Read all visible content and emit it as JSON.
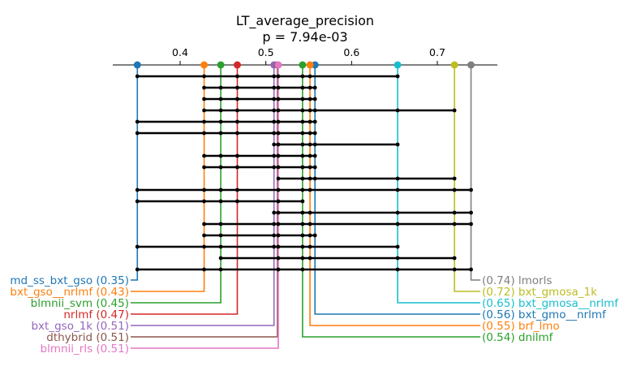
{
  "chart_data": {
    "type": "critical-difference",
    "title": "LT_average_precision",
    "subtitle": "p = 7.94e-03",
    "axis": {
      "range": [
        0.34,
        0.78
      ],
      "ticks": [
        0.4,
        0.5,
        0.6,
        0.7
      ],
      "tick_labels": [
        "0.4",
        "0.5",
        "0.6",
        "0.7"
      ],
      "position": "top"
    },
    "methods": [
      {
        "name": "md_ss_bxt_gso",
        "value": 0.35,
        "label": "md_ss_bxt_gso (0.35)",
        "side": "left",
        "color": "#1f77b4",
        "x_exact": 0.3501
      },
      {
        "name": "bxt_gso__nrlmf",
        "value": 0.43,
        "label": "bxt_gso__nrlmf (0.43)",
        "side": "left",
        "color": "#ff7f0e",
        "x_exact": 0.428
      },
      {
        "name": "blmnii_svm",
        "value": 0.45,
        "label": "blmnii_svm (0.45)",
        "side": "left",
        "color": "#2ca02c",
        "x_exact": 0.4474
      },
      {
        "name": "nrlmf",
        "value": 0.47,
        "label": "nrlmf (0.47)",
        "side": "left",
        "color": "#d62728",
        "x_exact": 0.4667
      },
      {
        "name": "bxt_gso_1k",
        "value": 0.51,
        "label": "bxt_gso_1k (0.51)",
        "side": "left",
        "color": "#9467bd",
        "x_exact": 0.5095
      },
      {
        "name": "dthybrid",
        "value": 0.51,
        "label": "dthybrid (0.51)",
        "side": "left",
        "color": "#8c564b",
        "x_exact": 0.5135
      },
      {
        "name": "blmnii_rls",
        "value": 0.51,
        "label": "blmnii_rls (0.51)",
        "side": "left",
        "color": "#e377c2",
        "x_exact": 0.5145
      },
      {
        "name": "lmorls",
        "value": 0.74,
        "label": "(0.74) lmorls",
        "side": "right",
        "color": "#7f7f7f",
        "x_exact": 0.7393
      },
      {
        "name": "bxt_gmosa_1k",
        "value": 0.72,
        "label": "(0.72) bxt_gmosa_1k",
        "side": "right",
        "color": "#bcbd22",
        "x_exact": 0.72
      },
      {
        "name": "bxt_gmosa__nrlmf",
        "value": 0.65,
        "label": "(0.65) bxt_gmosa__nrlmf",
        "side": "right",
        "color": "#17becf",
        "x_exact": 0.6537
      },
      {
        "name": "bxt_gmo__nrlmf",
        "value": 0.56,
        "label": "(0.56) bxt_gmo__nrlmf",
        "side": "right",
        "color": "#1f77b4",
        "x_exact": 0.5573
      },
      {
        "name": "brf_lmo",
        "value": 0.55,
        "label": "(0.55) brf_lmo",
        "side": "right",
        "color": "#ff7f0e",
        "x_exact": 0.5515
      },
      {
        "name": "dnilmf",
        "value": 0.54,
        "label": "(0.54) dnilmf",
        "side": "right",
        "color": "#2ca02c",
        "x_exact": 0.5428
      }
    ],
    "cliques": [
      [
        0.3501,
        0.6537
      ],
      [
        0.428,
        0.5573
      ],
      [
        0.428,
        0.5573
      ],
      [
        0.428,
        0.72
      ],
      [
        0.3501,
        0.5573
      ],
      [
        0.3501,
        0.5573
      ],
      [
        0.5095,
        0.6537
      ],
      [
        0.428,
        0.5573
      ],
      [
        0.428,
        0.5573
      ],
      [
        0.5145,
        0.72
      ],
      [
        0.3501,
        0.7393
      ],
      [
        0.3501,
        0.5428
      ],
      [
        0.5095,
        0.7393
      ],
      [
        0.428,
        0.7393
      ],
      [
        0.428,
        0.5573
      ],
      [
        0.3501,
        0.6537
      ],
      [
        0.4474,
        0.72
      ],
      [
        0.3501,
        0.7393
      ]
    ],
    "clique_points": [
      [
        0.3501,
        0.428,
        0.4667,
        0.5095,
        0.5145,
        0.5428,
        0.5515,
        0.6537
      ],
      [
        0.428,
        0.4474,
        0.4667,
        0.5095,
        0.5145,
        0.5428,
        0.5515,
        0.5573
      ],
      [
        0.428,
        0.4474,
        0.4667,
        0.5095,
        0.5145,
        0.5428,
        0.5515,
        0.5573
      ],
      [
        0.428,
        0.4474,
        0.4667,
        0.5095,
        0.5145,
        0.5428,
        0.5515,
        0.5573,
        0.6537,
        0.72
      ],
      [
        0.3501,
        0.428,
        0.4474,
        0.4667,
        0.5095,
        0.5145,
        0.5428,
        0.5515,
        0.5573
      ],
      [
        0.3501,
        0.428,
        0.4474,
        0.4667,
        0.5095,
        0.5145,
        0.5428,
        0.5515,
        0.5573
      ],
      [
        0.5095,
        0.5145,
        0.5428,
        0.5515,
        0.5573,
        0.6537
      ],
      [
        0.428,
        0.4474,
        0.4667,
        0.5095,
        0.5145,
        0.5428,
        0.5515,
        0.5573
      ],
      [
        0.428,
        0.4474,
        0.4667,
        0.5095,
        0.5145,
        0.5428,
        0.5515,
        0.5573
      ],
      [
        0.5145,
        0.5428,
        0.5515,
        0.5573,
        0.6537,
        0.72
      ],
      [
        0.3501,
        0.428,
        0.4474,
        0.4667,
        0.5145,
        0.5428,
        0.5515,
        0.6537,
        0.72,
        0.7393
      ],
      [
        0.3501,
        0.428,
        0.4474,
        0.4667,
        0.5145,
        0.5428
      ],
      [
        0.5095,
        0.5145,
        0.5428,
        0.5515,
        0.6537,
        0.72,
        0.7393
      ],
      [
        0.428,
        0.4474,
        0.5095,
        0.5145,
        0.5428,
        0.5515,
        0.6537,
        0.72,
        0.7393
      ],
      [
        0.428,
        0.4474,
        0.5095,
        0.5145,
        0.5428,
        0.5515,
        0.5573
      ],
      [
        0.3501,
        0.428,
        0.4474,
        0.5095,
        0.5145,
        0.5428,
        0.5515,
        0.6537
      ],
      [
        0.4474,
        0.5145,
        0.5428,
        0.5515,
        0.6537,
        0.72
      ],
      [
        0.3501,
        0.428,
        0.4474,
        0.5145,
        0.5428,
        0.6537,
        0.72,
        0.7393
      ]
    ]
  }
}
